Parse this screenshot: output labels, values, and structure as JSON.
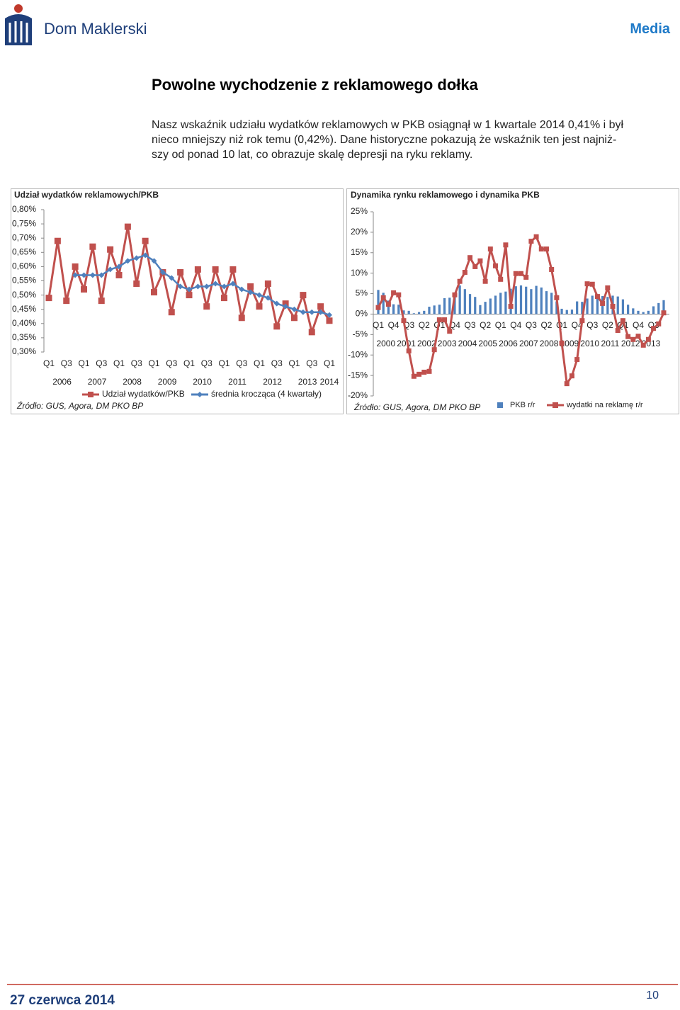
{
  "header": {
    "brand": "Dom Maklerski",
    "section": "Media"
  },
  "title": "Powolne wychodzenie z reklamowego dołka",
  "paragraph": [
    "Nasz wskaźnik udziału wydatków reklamowych w PKB osiągnął w 1 kwartale 2014 0,41% i był",
    "nieco mniejszy niż rok temu (0,42%). Dane historyczne pokazują że wskaźnik ten jest najniż-",
    "szy od ponad 10 lat, co obrazuje skalę depresji na ryku reklamy."
  ],
  "chart_data": [
    {
      "type": "line",
      "title": "Udział wydatków reklamowych/PKB",
      "source": "Źródło: GUS, Agora, DM PKO BP",
      "categories": [
        "Q1",
        null,
        "Q3",
        null,
        "Q1",
        null,
        "Q3",
        null,
        "Q1",
        null,
        "Q3",
        null,
        "Q1",
        null,
        "Q3",
        null,
        "Q1",
        null,
        "Q3",
        null,
        "Q1",
        null,
        "Q3",
        null,
        "Q1",
        null,
        "Q3",
        null,
        "Q1",
        null,
        "Q3",
        null,
        "Q1"
      ],
      "years": [
        "2006",
        "2007",
        "2008",
        "2009",
        "2010",
        "2011",
        "2012",
        "2013",
        "2014"
      ],
      "ylim": [
        0.3,
        0.8
      ],
      "yticks": [
        {
          "value": 0.8,
          "label": "0,80%"
        },
        {
          "value": 0.75,
          "label": "0,75%"
        },
        {
          "value": 0.7,
          "label": "0,70%"
        },
        {
          "value": 0.65,
          "label": "0,65%"
        },
        {
          "value": 0.6,
          "label": "0,60%"
        },
        {
          "value": 0.55,
          "label": "0,55%"
        },
        {
          "value": 0.5,
          "label": "0,50%"
        },
        {
          "value": 0.45,
          "label": "0,45%"
        },
        {
          "value": 0.4,
          "label": "0,40%"
        },
        {
          "value": 0.35,
          "label": "0,35%"
        },
        {
          "value": 0.3,
          "label": "0,30%"
        }
      ],
      "grid": false,
      "series": [
        {
          "name": "Udział wydatków/PKB",
          "type": "line",
          "marker": "square",
          "color": "#c0504d",
          "values": [
            0.49,
            0.69,
            0.48,
            0.6,
            0.52,
            0.67,
            0.48,
            0.66,
            0.57,
            0.74,
            0.54,
            0.69,
            0.51,
            0.58,
            0.44,
            0.58,
            0.5,
            0.59,
            0.46,
            0.59,
            0.49,
            0.59,
            0.42,
            0.53,
            0.46,
            0.54,
            0.39,
            0.47,
            0.42,
            0.5,
            0.37,
            0.46,
            0.41
          ]
        },
        {
          "name": "średnia krocząca (4 kwartały)",
          "type": "line",
          "marker": "diamond",
          "color": "#4f81bd",
          "values": [
            null,
            null,
            null,
            0.57,
            0.57,
            0.57,
            0.57,
            0.59,
            0.6,
            0.62,
            0.63,
            0.64,
            0.62,
            0.58,
            0.56,
            0.53,
            0.52,
            0.53,
            0.53,
            0.54,
            0.53,
            0.54,
            0.52,
            0.51,
            0.5,
            0.49,
            0.47,
            0.46,
            0.45,
            0.44,
            0.44,
            0.44,
            0.43
          ]
        }
      ]
    },
    {
      "type": "combo",
      "title": "Dynamika rynku reklamowego i dynamika PKB",
      "source": "Źródło: GUS, Agora, DM PKO BP",
      "categories": [
        "Q1",
        null,
        null,
        "Q4",
        null,
        null,
        "Q3",
        null,
        null,
        "Q2",
        null,
        null,
        "Q1",
        null,
        null,
        "Q4",
        null,
        null,
        "Q3",
        null,
        null,
        "Q2",
        null,
        null,
        "Q1",
        null,
        null,
        "Q4",
        null,
        null,
        "Q3",
        null,
        null,
        "Q2",
        null,
        null,
        "Q1",
        null,
        null,
        "Q4",
        null,
        null,
        "Q3",
        null,
        null,
        "Q2",
        null,
        null,
        "Q1",
        null,
        null,
        "Q4",
        null,
        null,
        "Q3",
        null,
        null
      ],
      "years": [
        "2000",
        "2001",
        "2002",
        "2003",
        "2004",
        "2005",
        "2006",
        "2007",
        "2008",
        "2009",
        "2010",
        "2011",
        "2012",
        "2013"
      ],
      "ylim": [
        -20,
        25
      ],
      "yticks": [
        {
          "value": 25,
          "label": "25%"
        },
        {
          "value": 20,
          "label": "20%"
        },
        {
          "value": 15,
          "label": "15%"
        },
        {
          "value": 10,
          "label": "10%"
        },
        {
          "value": 5,
          "label": "5%"
        },
        {
          "value": 0,
          "label": "0%"
        },
        {
          "value": -5,
          "label": "-5%"
        },
        {
          "value": -10,
          "label": "-10%"
        },
        {
          "value": -15,
          "label": "-15%"
        },
        {
          "value": -20,
          "label": "-20%"
        }
      ],
      "grid": false,
      "series": [
        {
          "name": "PKB r/r",
          "type": "bar",
          "color": "#4f81bd",
          "values": [
            5.9,
            5.2,
            3.3,
            2.4,
            2.3,
            0.9,
            0.8,
            0.2,
            0.5,
            0.8,
            1.8,
            2.1,
            2.3,
            3.9,
            4.0,
            4.7,
            7.0,
            6.1,
            4.9,
            4.2,
            2.2,
            3.0,
            3.8,
            4.5,
            5.2,
            5.5,
            6.2,
            6.8,
            7.0,
            6.7,
            6.1,
            6.9,
            6.5,
            5.6,
            5.2,
            3.1,
            1.3,
            1.0,
            1.1,
            3.1,
            3.0,
            3.8,
            4.5,
            4.6,
            4.4,
            4.2,
            4.5,
            4.3,
            3.6,
            2.3,
            1.4,
            0.8,
            0.5,
            0.8,
            1.9,
            2.7,
            3.4
          ]
        },
        {
          "name": "wydatki na reklamę r/r",
          "type": "line",
          "marker": "square",
          "color": "#c0504d",
          "values": [
            1.6,
            4.0,
            2.4,
            5.2,
            4.7,
            -1.6,
            -9.0,
            -15.2,
            -14.7,
            -14.2,
            -14.0,
            -8.7,
            -1.4,
            -1.4,
            -4.2,
            4.7,
            8.0,
            10.2,
            13.8,
            11.6,
            13.0,
            8.0,
            15.9,
            11.8,
            8.5,
            16.9,
            1.9,
            9.9,
            9.9,
            9.0,
            17.8,
            18.9,
            15.9,
            15.9,
            10.9,
            4.0,
            -7.1,
            -17.0,
            -15.1,
            -11.1,
            -1.6,
            7.4,
            7.3,
            4.3,
            2.6,
            6.4,
            1.9,
            -4.0,
            -1.6,
            -5.5,
            -6.2,
            -5.4,
            -7.6,
            -6.2,
            -3.5,
            -2.4,
            0.3
          ]
        }
      ]
    }
  ],
  "footer": {
    "date": "27 czerwca 2014",
    "page": "10"
  }
}
